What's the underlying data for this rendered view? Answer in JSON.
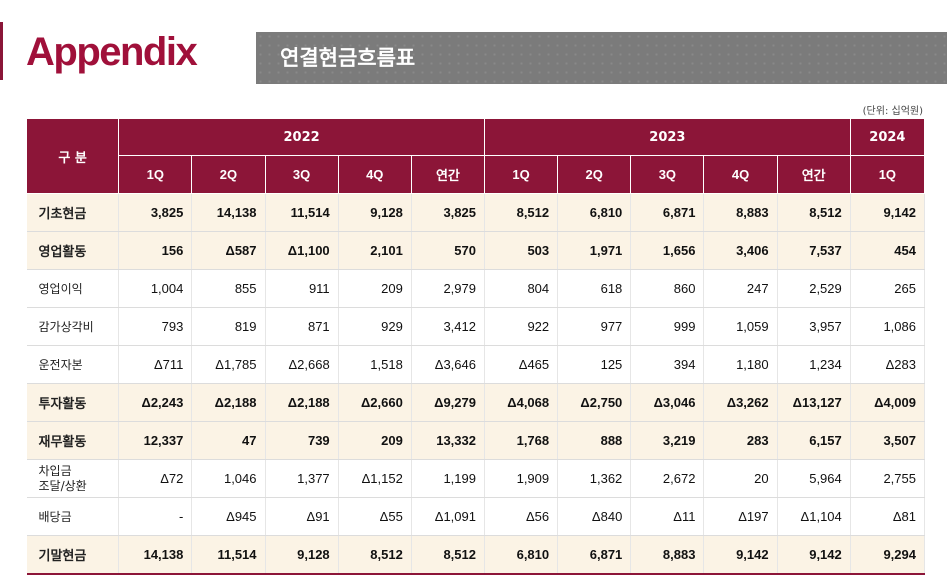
{
  "header": {
    "appendix": "Appendix",
    "title": "연결현금흐름표",
    "unit": "(단위: 십억원)"
  },
  "table": {
    "head_label": "구 분",
    "years": [
      "2022",
      "2023",
      "2024"
    ],
    "annual": [
      "연간",
      "연간"
    ],
    "quarters_2022": [
      "1Q",
      "2Q",
      "3Q",
      "4Q"
    ],
    "quarters_2023": [
      "1Q",
      "2Q",
      "3Q",
      "4Q"
    ],
    "quarters_2024": [
      "1Q"
    ],
    "rows": [
      {
        "label": "기초현금",
        "values": [
          "3,825",
          "14,138",
          "11,514",
          "9,128",
          "3,825",
          "8,512",
          "6,810",
          "6,871",
          "8,883",
          "8,512",
          "9,142"
        ]
      },
      {
        "label": "영업활동",
        "values": [
          "156",
          "Δ587",
          "Δ1,100",
          "2,101",
          "570",
          "503",
          "1,971",
          "1,656",
          "3,406",
          "7,537",
          "454"
        ]
      },
      {
        "label": "영업이익",
        "values": [
          "1,004",
          "855",
          "911",
          "209",
          "2,979",
          "804",
          "618",
          "860",
          "247",
          "2,529",
          "265"
        ]
      },
      {
        "label": "감가상각비",
        "values": [
          "793",
          "819",
          "871",
          "929",
          "3,412",
          "922",
          "977",
          "999",
          "1,059",
          "3,957",
          "1,086"
        ]
      },
      {
        "label": "운전자본",
        "values": [
          "Δ711",
          "Δ1,785",
          "Δ2,668",
          "1,518",
          "Δ3,646",
          "Δ465",
          "125",
          "394",
          "1,180",
          "1,234",
          "Δ283"
        ]
      },
      {
        "label": "투자활동",
        "values": [
          "Δ2,243",
          "Δ2,188",
          "Δ2,188",
          "Δ2,660",
          "Δ9,279",
          "Δ4,068",
          "Δ2,750",
          "Δ3,046",
          "Δ3,262",
          "Δ13,127",
          "Δ4,009"
        ]
      },
      {
        "label": "재무활동",
        "values": [
          "12,337",
          "47",
          "739",
          "209",
          "13,332",
          "1,768",
          "888",
          "3,219",
          "283",
          "6,157",
          "3,507"
        ]
      },
      {
        "label_line1": "차입금",
        "label_line2": "조달/상환",
        "values": [
          "Δ72",
          "1,046",
          "1,377",
          "Δ1,152",
          "1,199",
          "1,909",
          "1,362",
          "2,672",
          "20",
          "5,964",
          "2,755"
        ]
      },
      {
        "label": "배당금",
        "values": [
          "-",
          "Δ945",
          "Δ91",
          "Δ55",
          "Δ1,091",
          "Δ56",
          "Δ840",
          "Δ11",
          "Δ197",
          "Δ1,104",
          "Δ81"
        ]
      },
      {
        "label": "기말현금",
        "values": [
          "14,138",
          "11,514",
          "9,128",
          "8,512",
          "8,512",
          "6,810",
          "6,871",
          "8,883",
          "9,142",
          "9,142",
          "9,294"
        ]
      }
    ]
  },
  "colors": {
    "brand": "#a0103a",
    "header_bg": "#8c1538",
    "title_bar": "#7b7b7b",
    "highlight_row": "#fbf3e5"
  }
}
